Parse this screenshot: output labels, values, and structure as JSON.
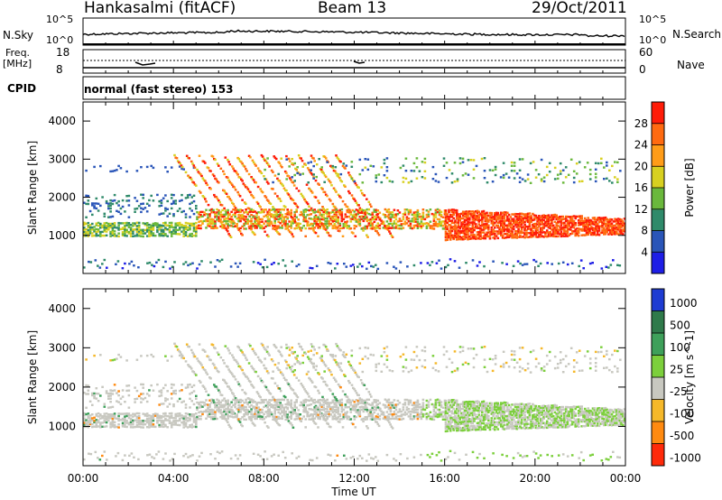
{
  "header": {
    "station": "Hankasalmi (fitACF)",
    "beam": "Beam 13",
    "date": "29/Oct/2011"
  },
  "noise_panel": {
    "left_label": "N.Sky",
    "right_label": "N.Search",
    "left_ticks": [
      "10^5",
      "10^0"
    ],
    "right_ticks": [
      "10^5",
      "10^0"
    ]
  },
  "freq_panel": {
    "left_label_1": "Freq.",
    "left_label_2": "[MHz]",
    "left_ticks": [
      "18",
      "8"
    ],
    "right_label": "Nave",
    "right_ticks": [
      "60",
      "0"
    ]
  },
  "cpid": {
    "label": "CPID",
    "mode_text": "normal (fast stereo) 153"
  },
  "chart_data": [
    {
      "type": "heatmap",
      "name_printed": "Power [dB]",
      "ylabel": "Slant Range [km]",
      "yticks": [
        "1000",
        "2000",
        "3000",
        "4000"
      ],
      "ylim": [
        0,
        4500
      ],
      "xlim": [
        0,
        24
      ],
      "colorbar": {
        "label": "Power [dB]",
        "ticks": [
          "4",
          "8",
          "12",
          "16",
          "20",
          "24",
          "28"
        ],
        "colors": [
          "#1e1ee6",
          "#2a55b8",
          "#2f8a6a",
          "#6ab83c",
          "#d8d020",
          "#ff9c18",
          "#ff6a10",
          "#ff1c08"
        ]
      },
      "features": [
        {
          "desc": "near-range band",
          "range_km": [
            1050,
            1300
          ],
          "hours": [
            0,
            5
          ],
          "level_db": 14
        },
        {
          "desc": "diagonal striations",
          "range_km": [
            900,
            3100
          ],
          "hours": [
            4,
            12
          ],
          "level_db": 24
        },
        {
          "desc": "main band",
          "range_km": [
            1200,
            1700
          ],
          "hours": [
            5,
            16
          ],
          "level_db": 22
        },
        {
          "desc": "strong echoes",
          "range_km": [
            900,
            1700
          ],
          "hours": [
            16,
            24
          ],
          "level_db": 29
        }
      ]
    },
    {
      "type": "heatmap",
      "ylabel": "Slant Range [km]",
      "yticks": [
        "1000",
        "2000",
        "3000",
        "4000"
      ],
      "ylim": [
        0,
        4500
      ],
      "xlim": [
        0,
        24
      ],
      "colorbar": {
        "label": "Velocity [m s^-1]",
        "ticks": [
          "1000",
          "500",
          "100",
          "25",
          "-25",
          "-100",
          "-500",
          "-1000"
        ],
        "colors": [
          "#1e3cd2",
          "#2f7a4a",
          "#3ea05a",
          "#7ccf3c",
          "#c8c8c0",
          "#f5b82a",
          "#ff8a10",
          "#ff2a0a"
        ]
      }
    }
  ],
  "x_axis": {
    "ticks": [
      "00:00",
      "04:00",
      "08:00",
      "12:00",
      "16:00",
      "20:00",
      "00:00"
    ],
    "label": "Time UT"
  }
}
